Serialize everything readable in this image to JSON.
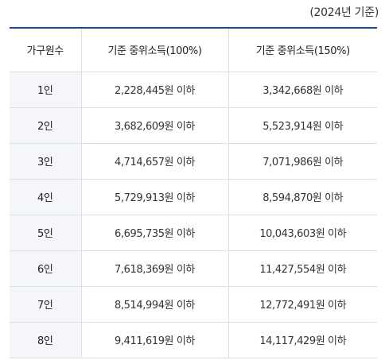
{
  "caption": "(2024년 기준)",
  "table": {
    "headers": [
      "가구원수",
      "기준 중위소득(100%)",
      "기준 중위소득(150%)"
    ],
    "rows": [
      {
        "household": "1인",
        "median_100": "2,228,445원 이하",
        "median_150": "3,342,668원 이하"
      },
      {
        "household": "2인",
        "median_100": "3,682,609원 이하",
        "median_150": "5,523,914원 이하"
      },
      {
        "household": "3인",
        "median_100": "4,714,657원 이하",
        "median_150": "7,071,986원 이하"
      },
      {
        "household": "4인",
        "median_100": "5,729,913원 이하",
        "median_150": "8,594,870원 이하"
      },
      {
        "household": "5인",
        "median_100": "6,695,735원 이하",
        "median_150": "10,043,603원 이하"
      },
      {
        "household": "6인",
        "median_100": "7,618,369원 이하",
        "median_150": "11,427,554원 이하"
      },
      {
        "household": "7인",
        "median_100": "8,514,994원 이하",
        "median_150": "12,772,491원 이하"
      },
      {
        "household": "8인",
        "median_100": "9,411,619원 이하",
        "median_150": "14,117,429원 이하"
      }
    ]
  }
}
